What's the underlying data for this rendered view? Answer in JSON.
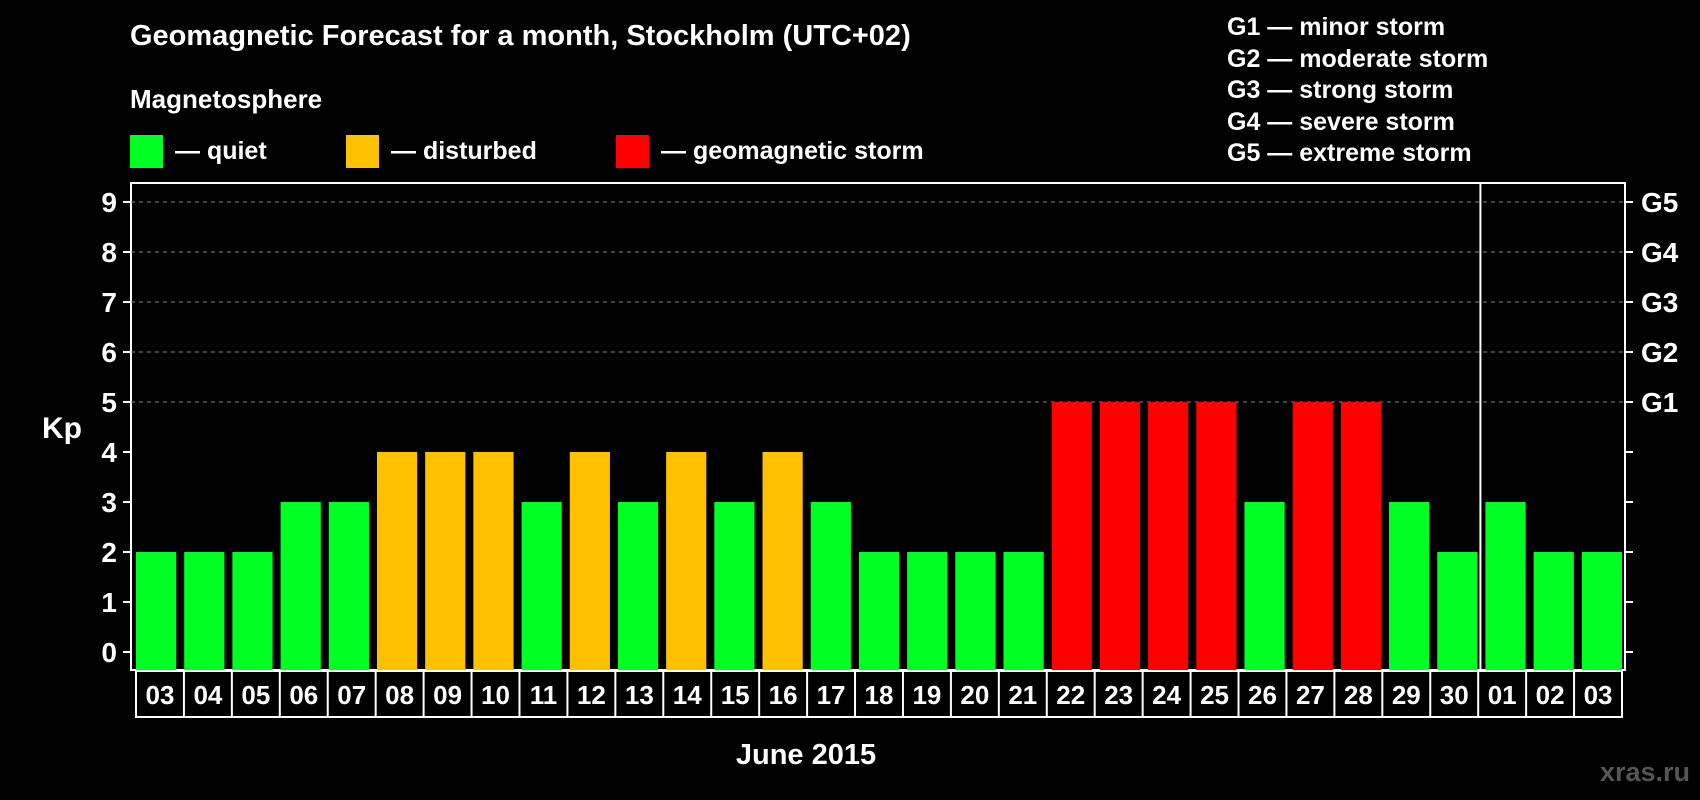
{
  "title": "Geomagnetic Forecast for a month, Stockholm (UTC+02)",
  "magnetosphere_label": "Magnetosphere",
  "legend": [
    {
      "color": "#00ff22",
      "label": "— quiet"
    },
    {
      "color": "#ffc000",
      "label": "— disturbed"
    },
    {
      "color": "#ff0000",
      "label": "— geomagnetic storm"
    }
  ],
  "storm_scale": [
    "G1 — minor storm",
    "G2 — moderate storm",
    "G3 — strong storm",
    "G4 — severe storm",
    "G5 — extreme storm"
  ],
  "watermark": "xras.ru",
  "chart_data": {
    "type": "bar",
    "title": "Geomagnetic Forecast for a month, Stockholm (UTC+02)",
    "xlabel": "June 2015",
    "ylabel": "Kp",
    "ylim": [
      0,
      9
    ],
    "yticks": [
      0,
      1,
      2,
      3,
      4,
      5,
      6,
      7,
      8,
      9
    ],
    "right_axis_labels": [
      {
        "kp": 5,
        "label": "G1"
      },
      {
        "kp": 6,
        "label": "G2"
      },
      {
        "kp": 7,
        "label": "G3"
      },
      {
        "kp": 8,
        "label": "G4"
      },
      {
        "kp": 9,
        "label": "G5"
      }
    ],
    "grid": "horizontal dashed at Kp 5-9",
    "month_separator_after": "30",
    "categories": [
      "03",
      "04",
      "05",
      "06",
      "07",
      "08",
      "09",
      "10",
      "11",
      "12",
      "13",
      "14",
      "15",
      "16",
      "17",
      "18",
      "19",
      "20",
      "21",
      "22",
      "23",
      "24",
      "25",
      "26",
      "27",
      "28",
      "29",
      "30",
      "01",
      "02",
      "03"
    ],
    "values": [
      2,
      2,
      2,
      3,
      3,
      4,
      4,
      4,
      3,
      4,
      3,
      4,
      3,
      4,
      3,
      2,
      2,
      2,
      2,
      5,
      5,
      5,
      5,
      3,
      5,
      5,
      3,
      2,
      3,
      2,
      2
    ],
    "colors": {
      "quiet": "#00ff22",
      "disturbed": "#ffc000",
      "storm": "#ff0000"
    }
  }
}
